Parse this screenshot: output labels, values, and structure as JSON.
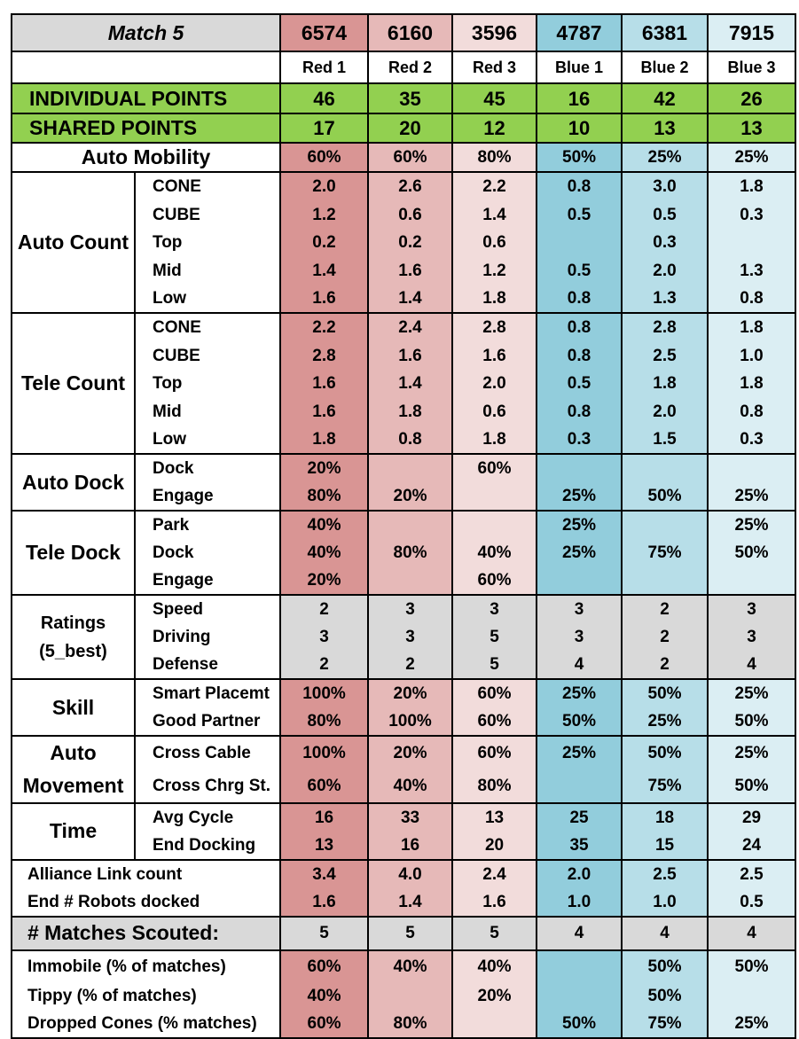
{
  "colors": {
    "red1": "#d99594",
    "red2": "#e6b9b8",
    "red3": "#f2dcdb",
    "blue1": "#92cddc",
    "blue2": "#b7dee8",
    "blue3": "#dbeef3",
    "green": "#92d050",
    "grey": "#d9d9d9"
  },
  "header": {
    "match_title": "Match 5",
    "team_numbers": [
      "6574",
      "6160",
      "3596",
      "4787",
      "6381",
      "7915"
    ],
    "positions": [
      "Red 1",
      "Red 2",
      "Red 3",
      "Blue 1",
      "Blue 2",
      "Blue 3"
    ]
  },
  "individual_points": {
    "label": "INDIVIDUAL POINTS",
    "values": [
      "46",
      "35",
      "45",
      "16",
      "42",
      "26"
    ]
  },
  "shared_points": {
    "label": "SHARED POINTS",
    "values": [
      "17",
      "20",
      "12",
      "10",
      "13",
      "13"
    ]
  },
  "auto_mobility": {
    "label": "Auto Mobility",
    "values": [
      "60%",
      "60%",
      "80%",
      "50%",
      "25%",
      "25%"
    ]
  },
  "groups": [
    {
      "label": "Auto Count",
      "rows": [
        {
          "label": "CONE",
          "values": [
            "2.0",
            "2.6",
            "2.2",
            "0.8",
            "3.0",
            "1.8"
          ]
        },
        {
          "label": "CUBE",
          "values": [
            "1.2",
            "0.6",
            "1.4",
            "0.5",
            "0.5",
            "0.3"
          ]
        },
        {
          "label": "Top",
          "values": [
            "0.2",
            "0.2",
            "0.6",
            "",
            "0.3",
            ""
          ]
        },
        {
          "label": "Mid",
          "values": [
            "1.4",
            "1.6",
            "1.2",
            "0.5",
            "2.0",
            "1.3"
          ]
        },
        {
          "label": "Low",
          "values": [
            "1.6",
            "1.4",
            "1.8",
            "0.8",
            "1.3",
            "0.8"
          ]
        }
      ]
    },
    {
      "label": "Tele Count",
      "rows": [
        {
          "label": "CONE",
          "values": [
            "2.2",
            "2.4",
            "2.8",
            "0.8",
            "2.8",
            "1.8"
          ]
        },
        {
          "label": "CUBE",
          "values": [
            "2.8",
            "1.6",
            "1.6",
            "0.8",
            "2.5",
            "1.0"
          ]
        },
        {
          "label": "Top",
          "values": [
            "1.6",
            "1.4",
            "2.0",
            "0.5",
            "1.8",
            "1.8"
          ]
        },
        {
          "label": "Mid",
          "values": [
            "1.6",
            "1.8",
            "0.6",
            "0.8",
            "2.0",
            "0.8"
          ]
        },
        {
          "label": "Low",
          "values": [
            "1.8",
            "0.8",
            "1.8",
            "0.3",
            "1.5",
            "0.3"
          ]
        }
      ]
    },
    {
      "label": "Auto Dock",
      "rows": [
        {
          "label": "Dock",
          "values": [
            "20%",
            "",
            "60%",
            "",
            "",
            ""
          ]
        },
        {
          "label": "Engage",
          "values": [
            "80%",
            "20%",
            "",
            "25%",
            "50%",
            "25%"
          ]
        }
      ]
    },
    {
      "label": "Tele Dock",
      "rows": [
        {
          "label": "Park",
          "values": [
            "40%",
            "",
            "",
            "25%",
            "",
            "25%"
          ]
        },
        {
          "label": "Dock",
          "values": [
            "40%",
            "80%",
            "40%",
            "25%",
            "75%",
            "50%"
          ]
        },
        {
          "label": "Engage",
          "values": [
            "20%",
            "",
            "60%",
            "",
            "",
            ""
          ]
        }
      ]
    },
    {
      "label": "Ratings (5_best)",
      "grey": true,
      "rows": [
        {
          "label": "Speed",
          "values": [
            "2",
            "3",
            "3",
            "3",
            "2",
            "3"
          ]
        },
        {
          "label": "Driving",
          "values": [
            "3",
            "3",
            "5",
            "3",
            "2",
            "3"
          ]
        },
        {
          "label": "Defense",
          "values": [
            "2",
            "2",
            "5",
            "4",
            "2",
            "4"
          ]
        }
      ]
    },
    {
      "label": "Skill",
      "rows": [
        {
          "label": "Smart Placemt",
          "values": [
            "100%",
            "20%",
            "60%",
            "25%",
            "50%",
            "25%"
          ]
        },
        {
          "label": "Good Partner",
          "values": [
            "80%",
            "100%",
            "60%",
            "50%",
            "25%",
            "50%"
          ]
        }
      ]
    },
    {
      "label": "Auto Movement",
      "rows": [
        {
          "label": "Cross Cable",
          "values": [
            "100%",
            "20%",
            "60%",
            "25%",
            "50%",
            "25%"
          ]
        },
        {
          "label": "Cross Chrg St.",
          "values": [
            "60%",
            "40%",
            "80%",
            "",
            "75%",
            "50%"
          ]
        }
      ]
    },
    {
      "label": "Time",
      "rows": [
        {
          "label": "Avg Cycle",
          "values": [
            "16",
            "33",
            "13",
            "25",
            "18",
            "29"
          ]
        },
        {
          "label": "End Docking",
          "values": [
            "13",
            "16",
            "20",
            "35",
            "15",
            "24"
          ]
        }
      ]
    }
  ],
  "alliance": [
    {
      "label": "Alliance Link count",
      "values": [
        "3.4",
        "4.0",
        "2.4",
        "2.0",
        "2.5",
        "2.5"
      ]
    },
    {
      "label": "End # Robots docked",
      "values": [
        "1.6",
        "1.4",
        "1.6",
        "1.0",
        "1.0",
        "0.5"
      ]
    }
  ],
  "matches_scouted": {
    "label": "# Matches Scouted:",
    "values": [
      "5",
      "5",
      "5",
      "4",
      "4",
      "4"
    ]
  },
  "issues": [
    {
      "label": "Immobile (% of matches)",
      "values": [
        "60%",
        "40%",
        "40%",
        "",
        "50%",
        "50%"
      ]
    },
    {
      "label": "Tippy (% of matches)",
      "values": [
        "40%",
        "",
        "20%",
        "",
        "50%",
        ""
      ]
    },
    {
      "label": "Dropped Cones (% matches)",
      "values": [
        "60%",
        "80%",
        "",
        "50%",
        "75%",
        "25%"
      ]
    }
  ]
}
